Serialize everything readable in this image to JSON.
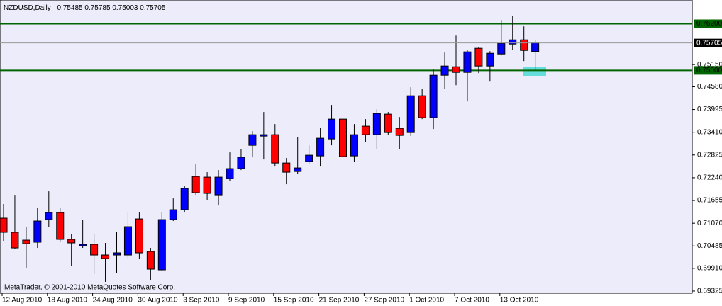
{
  "chart_data": {
    "type": "candlestick",
    "symbol": "NZDUSD,Daily",
    "footer": "MetaTrader, © 2001-2010 MetaQuotes Software Corp.",
    "categories": [
      "12 Aug 2010",
      null,
      null,
      null,
      "18 Aug 2010",
      null,
      null,
      null,
      "24 Aug 2010",
      null,
      null,
      null,
      "30 Aug 2010",
      null,
      null,
      null,
      "3 Sep 2010",
      null,
      null,
      null,
      "9 Sep 2010",
      null,
      null,
      null,
      "15 Sep 2010",
      null,
      null,
      null,
      "21 Sep 2010",
      null,
      null,
      null,
      "27 Sep 2010",
      null,
      null,
      null,
      "1 Oct 2010",
      null,
      null,
      null,
      "7 Oct 2010",
      null,
      null,
      null,
      "13 Oct 2010",
      null,
      null,
      null
    ],
    "open": [
      0.712,
      0.70836,
      0.70635,
      0.70581,
      0.71163,
      0.71345,
      0.70654,
      0.7049,
      0.70526,
      0.70253,
      0.70253,
      0.70253,
      0.71181,
      0.70344,
      0.69871,
      0.71163,
      0.71418,
      0.72273,
      0.72255,
      0.718,
      0.72219,
      0.72474,
      0.73074,
      0.73311,
      0.73347,
      0.72619,
      0.72401,
      0.72656,
      0.72801,
      0.73238,
      0.73748,
      0.72801,
      0.73566,
      0.73347,
      0.73875,
      0.73511,
      0.73402,
      0.74348,
      0.73784,
      0.74876,
      0.75094,
      0.74949,
      0.75568,
      0.75113,
      0.75422,
      0.75677,
      0.75786,
      0.75485
    ],
    "high": [
      0.71564,
      0.718,
      0.70981,
      0.71473,
      0.71891,
      0.71473,
      0.70799,
      0.71163,
      0.70799,
      0.70563,
      0.70836,
      0.71345,
      0.71345,
      0.70435,
      0.71345,
      0.71709,
      0.72037,
      0.72583,
      0.72383,
      0.72437,
      0.72892,
      0.72983,
      0.73438,
      0.7393,
      0.7362,
      0.72747,
      0.73293,
      0.73074,
      0.73529,
      0.74112,
      0.73802,
      0.7362,
      0.73748,
      0.74002,
      0.7393,
      0.73802,
      0.74567,
      0.7453,
      0.75022,
      0.75459,
      0.75895,
      0.75531,
      0.75604,
      0.75495,
      0.76296,
      0.76405,
      0.76132,
      0.75785
    ],
    "low": [
      0.70617,
      0.70399,
      0.69926,
      0.70435,
      0.70981,
      0.70581,
      0.6998,
      0.70435,
      0.69762,
      0.69562,
      0.69798,
      0.70162,
      0.70162,
      0.69616,
      0.69835,
      0.71127,
      0.71345,
      0.718,
      0.71673,
      0.71527,
      0.72164,
      0.72437,
      0.72765,
      0.7271,
      0.72528,
      0.72073,
      0.72346,
      0.72583,
      0.72528,
      0.73074,
      0.72583,
      0.72656,
      0.73165,
      0.72983,
      0.73347,
      0.72983,
      0.73311,
      0.73748,
      0.73493,
      0.7453,
      0.74621,
      0.74203,
      0.74931,
      0.74712,
      0.75386,
      0.75531,
      0.7524,
      0.75003
    ],
    "close": [
      0.70836,
      0.70435,
      0.70544,
      0.71127,
      0.71345,
      0.70654,
      0.70563,
      0.70526,
      0.70253,
      0.70162,
      0.70308,
      0.70981,
      0.70308,
      0.69889,
      0.71163,
      0.71418,
      0.71964,
      0.71855,
      0.71837,
      0.72255,
      0.72474,
      0.72765,
      0.73347,
      0.73347,
      0.72619,
      0.72383,
      0.72492,
      0.72819,
      0.73256,
      0.73748,
      0.72783,
      0.73347,
      0.73347,
      0.73893,
      0.73402,
      0.73329,
      0.74348,
      0.73784,
      0.74876,
      0.75113,
      0.74949,
      0.75477,
      0.75113,
      0.7544,
      0.75695,
      0.75786,
      0.75513,
      0.75705
    ],
    "up_color": "#0000ff",
    "down_color": "#ff0000",
    "ylim": [
      0.6927,
      0.7681
    ],
    "yticks": [
      0.69325,
      {
        "value": 0.6991,
        "label": "0.69910"
      },
      0.70485,
      {
        "value": 0.7107,
        "label": "0.71070"
      },
      0.71655,
      {
        "value": 0.7224,
        "label": "0.72240"
      },
      0.72825,
      {
        "value": 0.7341,
        "label": "0.73410"
      },
      0.73995,
      {
        "value": 0.7458,
        "label": "0.74580"
      },
      {
        "value": 0.7515,
        "label": "0.75150"
      }
    ],
    "levels": [
      {
        "value": 0.762,
        "label": "0.76200",
        "color": "#006400"
      },
      {
        "value": 0.75,
        "label": "0.75000",
        "color": "#006400"
      }
    ],
    "grid": false
  }
}
